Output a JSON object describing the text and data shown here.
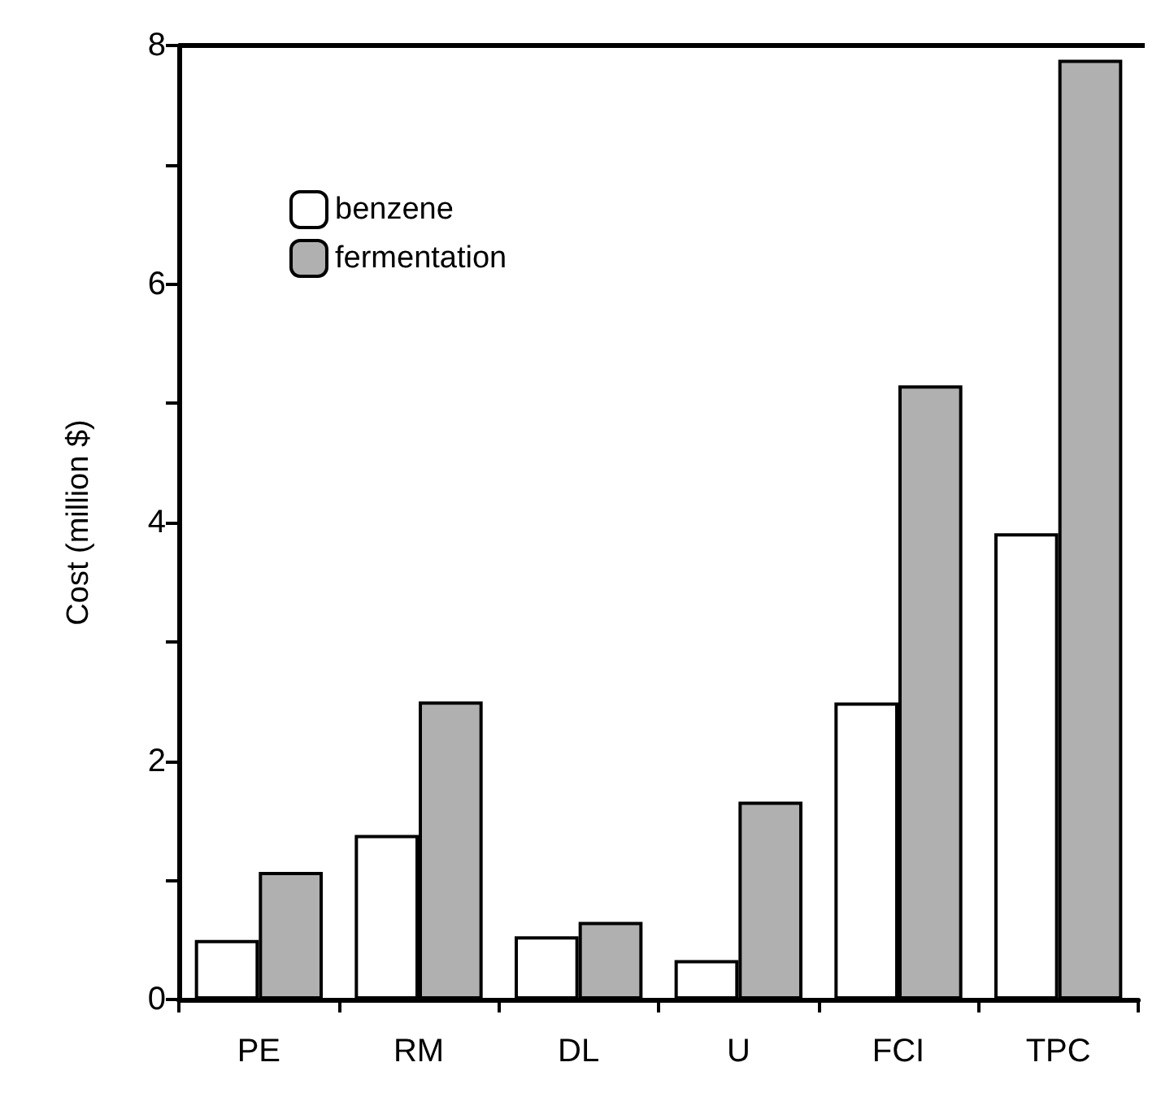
{
  "chart_data": {
    "type": "bar",
    "ylabel": "Cost (million $)",
    "categories": [
      "PE",
      "RM",
      "DL",
      "U",
      "FCI",
      "TPC"
    ],
    "series": [
      {
        "name": "benzene",
        "color": "#ffffff",
        "values": [
          0.5,
          1.38,
          0.53,
          0.33,
          2.49,
          3.91
        ]
      },
      {
        "name": "fermentation",
        "color": "#b0b0b0",
        "values": [
          1.07,
          2.5,
          0.65,
          1.66,
          5.15,
          7.88
        ]
      }
    ],
    "ylim": [
      0,
      8
    ],
    "yticks": [
      0,
      {
        "value": 1,
        "label": null
      },
      2,
      {
        "value": 3,
        "label": null
      },
      4,
      {
        "value": 5,
        "label": null
      },
      6,
      {
        "value": 7,
        "label": null
      },
      8
    ],
    "grid": false,
    "legend": "top left"
  }
}
